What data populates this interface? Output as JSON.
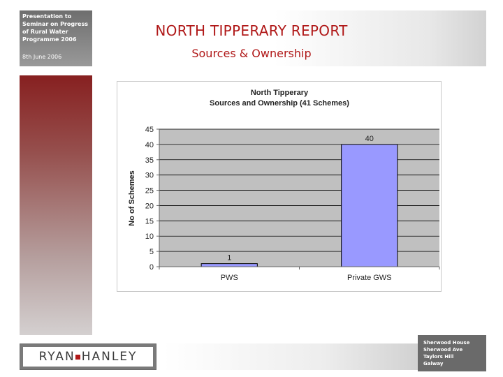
{
  "presentation": {
    "title_lines": [
      "Presentation to",
      "Seminar on Progress",
      "of Rural Water",
      "Programme 2006"
    ],
    "date": "8th June 2006"
  },
  "header": {
    "title": "NORTH TIPPERARY REPORT",
    "subtitle": "Sources & Ownership"
  },
  "logo": {
    "left": "RYAN",
    "right": "HANLEY"
  },
  "address": [
    "Sherwood House",
    "Sherwood Ave",
    "Taylors Hill",
    "Galway"
  ],
  "colors": {
    "accent_red": "#b01818",
    "bar_fill": "#9999ff",
    "plot_bg": "#c0c0c0"
  },
  "chart_data": {
    "type": "bar",
    "title": "North Tipperary",
    "subtitle": "Sources and Ownership (41 Schemes)",
    "categories": [
      "PWS",
      "Private GWS"
    ],
    "values": [
      1,
      40
    ],
    "data_labels": [
      "1",
      "40"
    ],
    "xlabel": "",
    "ylabel": "No of Schemes",
    "ylim": [
      0,
      45
    ],
    "yticks": [
      0,
      5,
      10,
      15,
      20,
      25,
      30,
      35,
      40,
      45
    ],
    "grid": true,
    "legend": "none"
  }
}
